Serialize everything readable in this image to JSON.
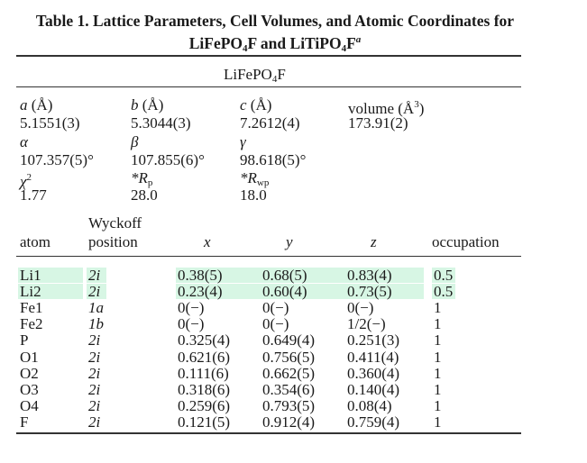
{
  "caption": {
    "line1": "Table 1. Lattice Parameters, Cell Volumes, and Atomic Coordinates for",
    "line2_prefix": "LiFePO",
    "line2_sub1": "4",
    "line2_mid": "F and LiTiPO",
    "line2_sub2": "4",
    "line2_end": "F",
    "line2_sup": "a"
  },
  "compound": {
    "prefix": "LiFePO",
    "sub": "4",
    "suffix": "F"
  },
  "params": {
    "a_label": "a (Å)",
    "b_label": "b (Å)",
    "c_label": "c (Å)",
    "vol_label": "volume (Å",
    "vol_sup": "3",
    "vol_close": ")",
    "a": "5.1551(3)",
    "b": "5.3044(3)",
    "c": "7.2612(4)",
    "volume": "173.91(2)",
    "alpha_label": "α",
    "beta_label": "β",
    "gamma_label": "γ",
    "alpha": "107.357(5)°",
    "beta": "107.855(6)°",
    "gamma": "98.618(5)°",
    "chi_label": "χ",
    "chi_sup": "2",
    "rp_label": "*R",
    "rp_sub": "p",
    "rwp_label": "*R",
    "rwp_sub": "wp",
    "chi": "1.77",
    "rp": "28.0",
    "rwp": "18.0"
  },
  "columns": {
    "wyckoff_1": "Wyckoff",
    "atom": "atom",
    "position": "position",
    "x": "x",
    "y": "y",
    "z": "z",
    "occupation": "occupation"
  },
  "highlight_color": "#d7f6e4",
  "rows": [
    {
      "atom": "Li1",
      "wyck": "2i",
      "x": "0.38(5)",
      "y": "0.68(5)",
      "z": "0.83(4)",
      "occ": "0.5",
      "highlight": true
    },
    {
      "atom": "Li2",
      "wyck": "2i",
      "x": "0.23(4)",
      "y": "0.60(4)",
      "z": "0.73(5)",
      "occ": "0.5",
      "highlight": true
    },
    {
      "atom": "Fe1",
      "wyck": "1a",
      "x": "0(−)",
      "y": "0(−)",
      "z": "0(−)",
      "occ": "1",
      "highlight": false
    },
    {
      "atom": "Fe2",
      "wyck": "1b",
      "x": "0(−)",
      "y": "0(−)",
      "z": "1/2(−)",
      "occ": "1",
      "highlight": false
    },
    {
      "atom": "P",
      "wyck": "2i",
      "x": "0.325(4)",
      "y": "0.649(4)",
      "z": "0.251(3)",
      "occ": "1",
      "highlight": false
    },
    {
      "atom": "O1",
      "wyck": "2i",
      "x": "0.621(6)",
      "y": "0.756(5)",
      "z": "0.411(4)",
      "occ": "1",
      "highlight": false
    },
    {
      "atom": "O2",
      "wyck": "2i",
      "x": "0.111(6)",
      "y": "0.662(5)",
      "z": "0.360(4)",
      "occ": "1",
      "highlight": false
    },
    {
      "atom": "O3",
      "wyck": "2i",
      "x": "0.318(6)",
      "y": "0.354(6)",
      "z": "0.140(4)",
      "occ": "1",
      "highlight": false
    },
    {
      "atom": "O4",
      "wyck": "2i",
      "x": "0.259(6)",
      "y": "0.793(5)",
      "z": "0.08(4)",
      "occ": "1",
      "highlight": false
    },
    {
      "atom": "F",
      "wyck": "2i",
      "x": "0.121(5)",
      "y": "0.912(4)",
      "z": "0.759(4)",
      "occ": "1",
      "highlight": false
    }
  ]
}
